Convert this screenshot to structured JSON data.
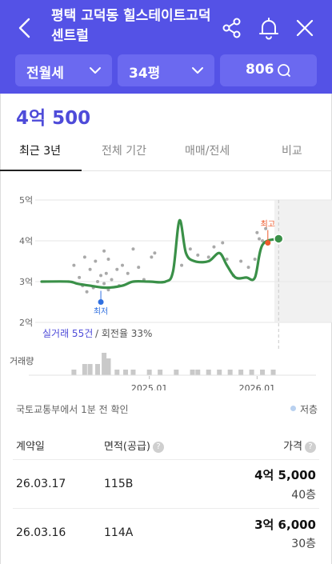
{
  "header": {
    "title": "평택 고덕동 힐스테이트고덕 센트럴",
    "filters": {
      "deal_type": "전월세",
      "size": "34평",
      "comments": "806"
    }
  },
  "price": "4억 500",
  "tabs": [
    "최근 3년",
    "전체 기간",
    "매매/전세",
    "비교"
  ],
  "active_tab": 0,
  "chart_data": {
    "type": "line",
    "y_tick_labels": [
      "5억",
      "4억",
      "3억",
      "2억"
    ],
    "x_tick_labels": [
      "2025.01",
      "2026.01"
    ],
    "ylim": [
      2,
      5
    ],
    "unit": "억",
    "series": [
      {
        "points": [
          [
            2024.0,
            3.0
          ],
          [
            2024.25,
            3.0
          ],
          [
            2024.33,
            2.95
          ],
          [
            2024.45,
            2.9
          ],
          [
            2024.6,
            2.85
          ],
          [
            2024.75,
            2.9
          ],
          [
            2024.85,
            3.0
          ],
          [
            2025.0,
            3.0
          ],
          [
            2025.15,
            3.0
          ],
          [
            2025.22,
            3.25
          ],
          [
            2025.28,
            4.5
          ],
          [
            2025.34,
            3.7
          ],
          [
            2025.42,
            3.5
          ],
          [
            2025.55,
            3.5
          ],
          [
            2025.65,
            3.7
          ],
          [
            2025.72,
            3.4
          ],
          [
            2025.8,
            3.1
          ],
          [
            2025.9,
            3.1
          ],
          [
            2025.98,
            3.1
          ],
          [
            2026.05,
            3.9
          ],
          [
            2026.2,
            4.05
          ]
        ]
      }
    ],
    "max_label": "최고",
    "min_label": "최저",
    "max_point": [
      2026.1,
      3.95
    ],
    "min_point": [
      2024.55,
      2.5
    ],
    "volume_label": "거래량",
    "volume": [
      [
        2024.3,
        1
      ],
      [
        2024.4,
        2
      ],
      [
        2024.45,
        2
      ],
      [
        2024.52,
        2
      ],
      [
        2024.58,
        4
      ],
      [
        2024.62,
        3
      ],
      [
        2024.7,
        1
      ],
      [
        2024.78,
        1
      ],
      [
        2024.85,
        1
      ],
      [
        2025.0,
        1
      ],
      [
        2025.1,
        1
      ],
      [
        2025.25,
        1
      ],
      [
        2025.4,
        1
      ],
      [
        2025.45,
        1
      ],
      [
        2025.55,
        1
      ],
      [
        2025.65,
        1
      ],
      [
        2025.75,
        1
      ],
      [
        2025.85,
        1
      ],
      [
        2025.95,
        1
      ],
      [
        2026.05,
        1
      ],
      [
        2026.15,
        1
      ]
    ]
  },
  "chart_info": {
    "deal_count": "실거래 55건",
    "renewal": " / 회전율 33%"
  },
  "source_text": "국토교통부에서 1분 전 확인",
  "legend_label": "저층",
  "table": {
    "headers": [
      "계약일",
      "면적(공급)",
      "가격"
    ],
    "rows": [
      {
        "date": "26.03.17",
        "area": "115B",
        "price": "4억 5,000",
        "floor": "40층"
      },
      {
        "date": "26.03.16",
        "area": "114A",
        "price": "3억 6,000",
        "floor": "30층"
      }
    ]
  },
  "colors": {
    "brand": "#5452e6",
    "line": "#3a9048",
    "max": "#ee5a2c",
    "min": "#2f6fe0",
    "price": "#4e4bd9"
  }
}
